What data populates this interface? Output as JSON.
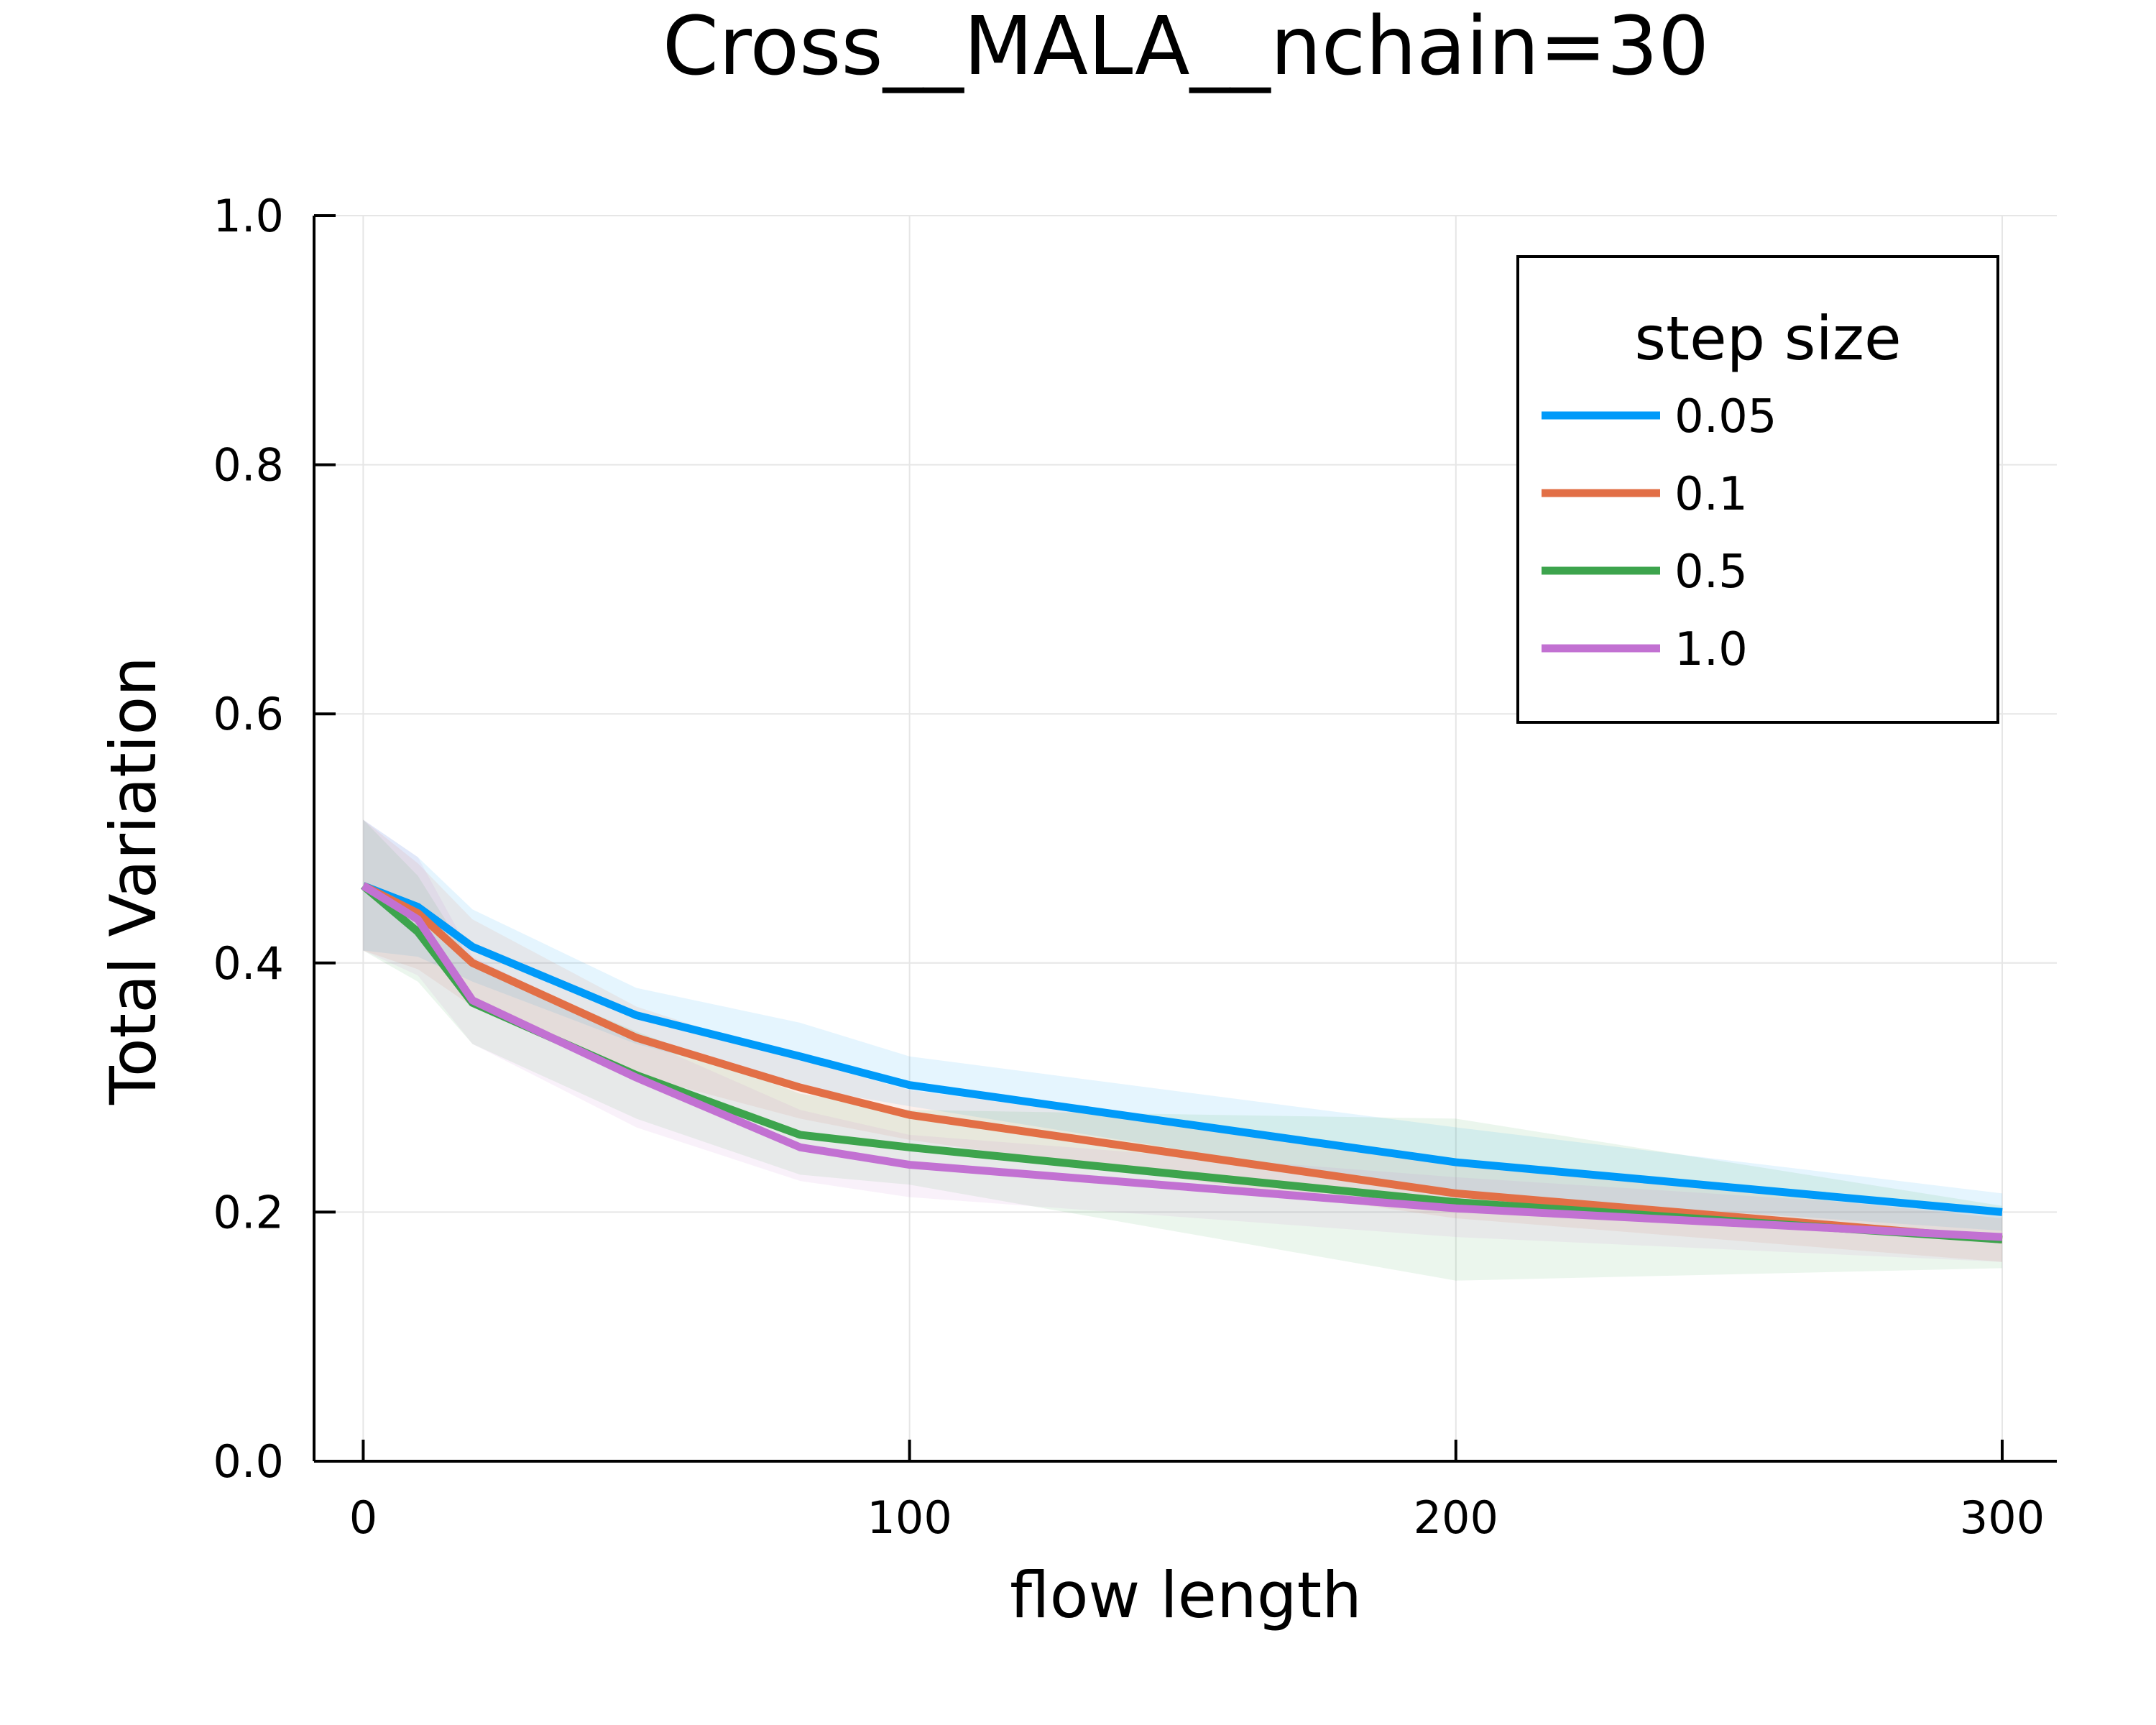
{
  "chart_data": {
    "type": "line",
    "title": "Cross__MALA__nchain=30",
    "xlabel": "flow length",
    "ylabel": "Total Variation",
    "xlim": [
      -9,
      310
    ],
    "ylim": [
      0,
      1
    ],
    "xticks": [
      0,
      100,
      200,
      300
    ],
    "yticks": [
      0.0,
      0.2,
      0.4,
      0.6,
      0.8,
      1.0
    ],
    "xtick_labels": [
      "0",
      "100",
      "200",
      "300"
    ],
    "ytick_labels": [
      "0.0",
      "0.2",
      "0.4",
      "0.6",
      "0.8",
      "1.0"
    ],
    "grid": true,
    "legend": {
      "title": "step size",
      "position": "top-right"
    },
    "x": [
      0,
      10,
      20,
      50,
      80,
      100,
      200,
      300
    ],
    "series": [
      {
        "name": "0.05",
        "color": "#009af9",
        "values": [
          0.462,
          0.445,
          0.413,
          0.358,
          0.325,
          0.302,
          0.24,
          0.2
        ],
        "lower": [
          0.41,
          0.405,
          0.385,
          0.335,
          0.3,
          0.285,
          0.215,
          0.185
        ],
        "upper": [
          0.515,
          0.485,
          0.443,
          0.38,
          0.352,
          0.325,
          0.268,
          0.215
        ]
      },
      {
        "name": "0.1",
        "color": "#e26f46",
        "values": [
          0.462,
          0.44,
          0.4,
          0.34,
          0.3,
          0.278,
          0.215,
          0.178
        ],
        "lower": [
          0.41,
          0.395,
          0.365,
          0.31,
          0.275,
          0.258,
          0.195,
          0.16
        ],
        "upper": [
          0.515,
          0.48,
          0.435,
          0.365,
          0.322,
          0.298,
          0.24,
          0.195
        ]
      },
      {
        "name": "0.5",
        "color": "#3da44d",
        "values": [
          0.462,
          0.425,
          0.368,
          0.31,
          0.262,
          0.252,
          0.208,
          0.178
        ],
        "lower": [
          0.41,
          0.385,
          0.335,
          0.275,
          0.23,
          0.222,
          0.145,
          0.155
        ],
        "upper": [
          0.515,
          0.47,
          0.4,
          0.345,
          0.295,
          0.282,
          0.275,
          0.205
        ]
      },
      {
        "name": "1.0",
        "color": "#c271d2",
        "values": [
          0.462,
          0.435,
          0.37,
          0.308,
          0.252,
          0.238,
          0.203,
          0.18
        ],
        "lower": [
          0.41,
          0.39,
          0.335,
          0.268,
          0.225,
          0.212,
          0.18,
          0.16
        ],
        "upper": [
          0.515,
          0.485,
          0.405,
          0.34,
          0.282,
          0.262,
          0.228,
          0.2
        ]
      }
    ]
  }
}
